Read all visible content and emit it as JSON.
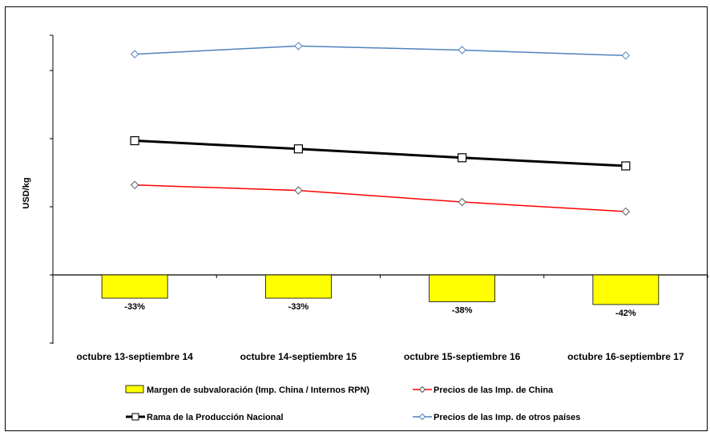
{
  "chart_data": {
    "type": "bar+line",
    "title": "",
    "xlabel": "",
    "ylabel": "USD/kg",
    "categories": [
      "octubre 13-septiembre 14",
      "octubre 14-septiembre 15",
      "octubre 15-septiembre 16",
      "octubre 16-septiembre 17"
    ],
    "y_tick_labels_shown": false,
    "grid": false,
    "legend_placement": "bottom",
    "bars": {
      "name": "Margen de subvaloración (Imp. China / Internos RPN)",
      "values": [
        -33,
        -33,
        -38,
        -42
      ],
      "labels": [
        "-33%",
        "-33%",
        "-38%",
        "-42%"
      ],
      "color": "#FFFF00",
      "edge_color": "#000000"
    },
    "series": [
      {
        "name": "Precios de las Imp. de China",
        "values": [
          1.32,
          1.24,
          1.07,
          0.93
        ],
        "color": "#FF0000",
        "marker": "diamond"
      },
      {
        "name": "Rama de la Producción Nacional",
        "values": [
          1.97,
          1.85,
          1.72,
          1.6
        ],
        "color": "#000000",
        "marker": "square"
      },
      {
        "name": "Precios de las Imp. de otros países",
        "values": [
          3.24,
          3.36,
          3.3,
          3.22
        ],
        "color": "#4F81BD",
        "marker": "diamond"
      }
    ]
  }
}
